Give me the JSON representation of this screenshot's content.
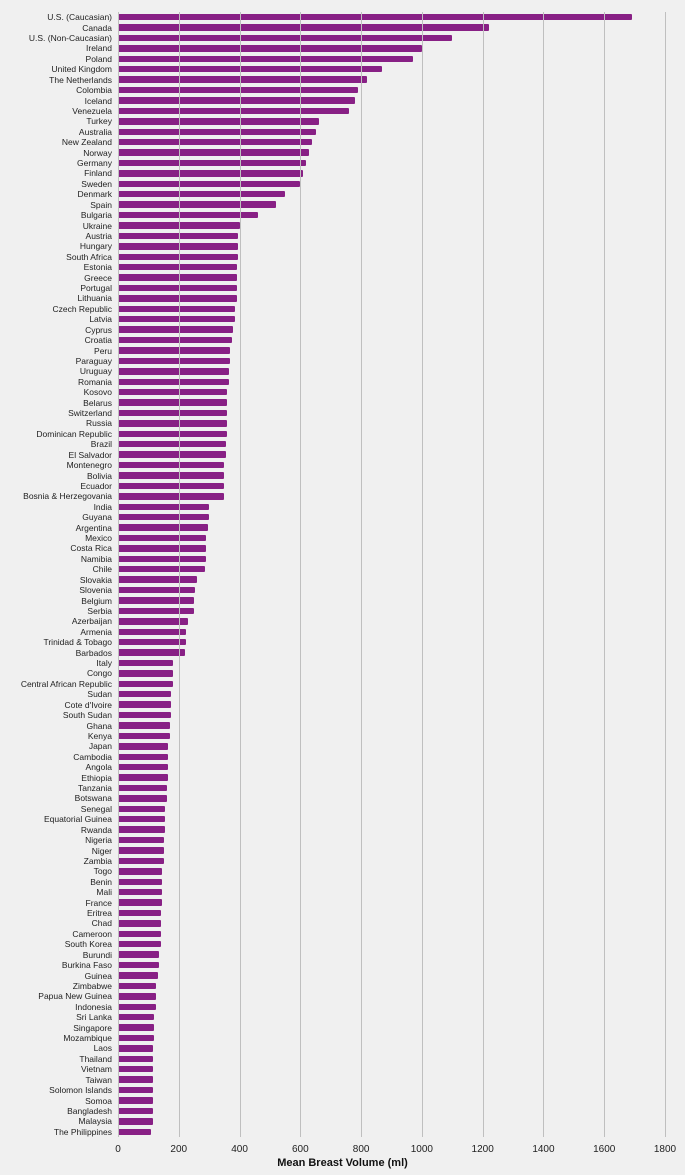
{
  "chart": {
    "type": "bar-horizontal",
    "background_color": "#f0f0f0",
    "grid_color": "#bfbfbf",
    "bar_color": "#882085",
    "x_title": "Mean Breast Volume (ml)",
    "x_title_fontsize": 11,
    "x_title_fontweight": "bold",
    "y_label_fontsize": 8.5,
    "x_tick_fontsize": 10,
    "xlim_min": 0,
    "xlim_max": 1800,
    "xtick_step": 200,
    "bar_fill_ratio": 0.62,
    "categories": [
      "U.S. (Caucasian)",
      "Canada",
      "U.S. (Non-Caucasian)",
      "Ireland",
      "Poland",
      "United Kingdom",
      "The Netherlands",
      "Colombia",
      "Iceland",
      "Venezuela",
      "Turkey",
      "Australia",
      "New Zealand",
      "Norway",
      "Germany",
      "Finland",
      "Sweden",
      "Denmark",
      "Spain",
      "Bulgaria",
      "Ukraine",
      "Austria",
      "Hungary",
      "South Africa",
      "Estonia",
      "Greece",
      "Portugal",
      "Lithuania",
      "Czech Republic",
      "Latvia",
      "Cyprus",
      "Croatia",
      "Peru",
      "Paraguay",
      "Uruguay",
      "Romania",
      "Kosovo",
      "Belarus",
      "Switzerland",
      "Russia",
      "Dominican Republic",
      "Brazil",
      "El Salvador",
      "Montenegro",
      "Bolivia",
      "Ecuador",
      "Bosnia & Herzegovania",
      "India",
      "Guyana",
      "Argentina",
      "Mexico",
      "Costa Rica",
      "Namibia",
      "Chile",
      "Slovakia",
      "Slovenia",
      "Belgium",
      "Serbia",
      "Azerbaijan",
      "Armenia",
      "Trinidad & Tobago",
      "Barbados",
      "Italy",
      "Congo",
      "Central African Republic",
      "Sudan",
      "Cote d'Ivoire",
      "South Sudan",
      "Ghana",
      "Kenya",
      "Japan",
      "Cambodia",
      "Angola",
      "Ethiopia",
      "Tanzania",
      "Botswana",
      "Senegal",
      "Equatorial Guinea",
      "Rwanda",
      "Nigeria",
      "Niger",
      "Zambia",
      "Togo",
      "Benin",
      "Mali",
      "France",
      "Eritrea",
      "Chad",
      "Cameroon",
      "South Korea",
      "Burundi",
      "Burkina Faso",
      "Guinea",
      "Zimbabwe",
      "Papua New Guinea",
      "Indonesia",
      "Sri Lanka",
      "Singapore",
      "Mozambique",
      "Laos",
      "Thailand",
      "Vietnam",
      "Taiwan",
      "Solomon Islands",
      "Somoa",
      "Bangladesh",
      "Malaysia",
      "The Philippines"
    ],
    "values": [
      1690,
      1220,
      1100,
      1000,
      970,
      870,
      820,
      790,
      780,
      760,
      660,
      650,
      640,
      630,
      620,
      610,
      600,
      550,
      520,
      460,
      400,
      395,
      395,
      395,
      390,
      390,
      390,
      390,
      385,
      385,
      380,
      375,
      370,
      370,
      365,
      365,
      360,
      360,
      360,
      360,
      360,
      355,
      355,
      350,
      350,
      350,
      350,
      300,
      300,
      295,
      290,
      290,
      290,
      285,
      260,
      255,
      250,
      250,
      230,
      225,
      225,
      220,
      180,
      180,
      180,
      175,
      175,
      175,
      170,
      170,
      165,
      165,
      165,
      165,
      160,
      160,
      155,
      155,
      155,
      150,
      150,
      150,
      145,
      145,
      145,
      145,
      140,
      140,
      140,
      140,
      135,
      135,
      130,
      125,
      125,
      125,
      120,
      120,
      120,
      115,
      115,
      115,
      115,
      115,
      115,
      115,
      115,
      110
    ]
  }
}
